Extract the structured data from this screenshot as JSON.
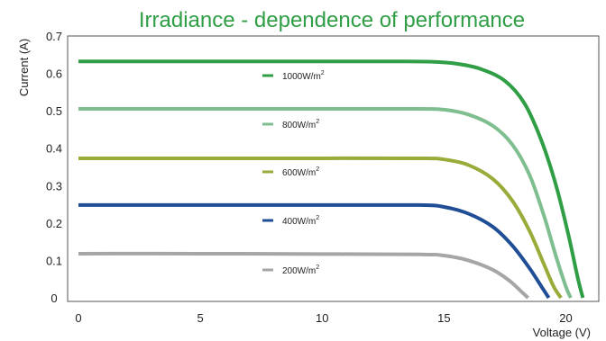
{
  "chart_data": {
    "type": "line",
    "title": "Irradiance - dependence of performance",
    "xlabel": "Voltage (V)",
    "ylabel": "Current (A)",
    "xlim": [
      0,
      21.5
    ],
    "ylim": [
      0,
      0.7
    ],
    "x_ticks": [
      "0",
      "5",
      "10",
      "15",
      "20"
    ],
    "y_ticks": [
      "0",
      "0.1",
      "0.2",
      "0.3",
      "0.4",
      "0.5",
      "0.6",
      "0.7"
    ],
    "grid": false,
    "legend_position": "center-inline",
    "series": [
      {
        "name": "1000W/m2",
        "legend_text": "1000W/m",
        "legend_sup": "2",
        "color": "#2f9e45",
        "points": [
          [
            0,
            0.632
          ],
          [
            5,
            0.632
          ],
          [
            10,
            0.632
          ],
          [
            13,
            0.632
          ],
          [
            14.5,
            0.631
          ],
          [
            15.5,
            0.626
          ],
          [
            16.5,
            0.612
          ],
          [
            17.5,
            0.58
          ],
          [
            18.3,
            0.52
          ],
          [
            19,
            0.42
          ],
          [
            19.6,
            0.3
          ],
          [
            20.1,
            0.17
          ],
          [
            20.5,
            0.05
          ],
          [
            20.7,
            0.0
          ]
        ]
      },
      {
        "name": "800W/m2",
        "legend_text": "800W/m",
        "legend_sup": "2",
        "color": "#7fbe8f",
        "points": [
          [
            0,
            0.505
          ],
          [
            5,
            0.505
          ],
          [
            10,
            0.505
          ],
          [
            14,
            0.505
          ],
          [
            15,
            0.503
          ],
          [
            16,
            0.49
          ],
          [
            17,
            0.46
          ],
          [
            17.8,
            0.41
          ],
          [
            18.5,
            0.33
          ],
          [
            19.1,
            0.22
          ],
          [
            19.6,
            0.11
          ],
          [
            20.0,
            0.03
          ],
          [
            20.2,
            0.0
          ]
        ]
      },
      {
        "name": "600W/m2",
        "legend_text": "600W/m",
        "legend_sup": "2",
        "color": "#9aab3a",
        "points": [
          [
            0,
            0.373
          ],
          [
            5,
            0.373
          ],
          [
            10,
            0.373
          ],
          [
            14,
            0.373
          ],
          [
            15,
            0.37
          ],
          [
            16,
            0.355
          ],
          [
            17,
            0.318
          ],
          [
            17.8,
            0.26
          ],
          [
            18.5,
            0.18
          ],
          [
            19.1,
            0.09
          ],
          [
            19.5,
            0.03
          ],
          [
            19.8,
            0.0
          ]
        ]
      },
      {
        "name": "400W/m2",
        "legend_text": "400W/m",
        "legend_sup": "2",
        "color": "#1f4e96",
        "points": [
          [
            0,
            0.248
          ],
          [
            5,
            0.248
          ],
          [
            10,
            0.248
          ],
          [
            14,
            0.248
          ],
          [
            15,
            0.243
          ],
          [
            16,
            0.225
          ],
          [
            17,
            0.19
          ],
          [
            17.8,
            0.14
          ],
          [
            18.5,
            0.08
          ],
          [
            19.0,
            0.03
          ],
          [
            19.3,
            0.0
          ]
        ]
      },
      {
        "name": "200W/m2",
        "legend_text": "200W/m",
        "legend_sup": "2",
        "color": "#a6a6a6",
        "points": [
          [
            0,
            0.118
          ],
          [
            5,
            0.118
          ],
          [
            10,
            0.117
          ],
          [
            14,
            0.116
          ],
          [
            15,
            0.113
          ],
          [
            16,
            0.1
          ],
          [
            17,
            0.075
          ],
          [
            17.7,
            0.045
          ],
          [
            18.2,
            0.015
          ],
          [
            18.45,
            0.0
          ]
        ]
      }
    ]
  }
}
